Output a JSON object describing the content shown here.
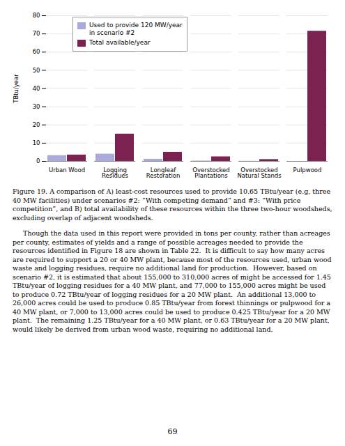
{
  "chart_data": {
    "type": "bar",
    "categories": [
      "Urban Wood",
      "Logging\nResidues",
      "Longleaf\nRestoration",
      "Overstocked\nPlantations",
      "Overstocked\nNatural Stands",
      "Pulpwood"
    ],
    "series": [
      {
        "name": "Used to provide 120 MW/year\nin scenario #2",
        "color": "#AAAADD",
        "values": [
          3.2,
          4.0,
          1.2,
          0.2,
          0.05,
          0.0
        ]
      },
      {
        "name": "Total available/year",
        "color": "#7B2251",
        "values": [
          3.5,
          15.0,
          5.0,
          2.5,
          1.0,
          71.5
        ]
      }
    ],
    "ylabel": "TBtu/year",
    "ylim": [
      0,
      80
    ],
    "yticks": [
      0,
      10,
      20,
      30,
      40,
      50,
      60,
      70,
      80
    ],
    "grid": true,
    "legend": "upper left",
    "caption": "Figure 19.  A comparison of A) least-cost resources used to provide 10.65 TBtu/year (e.g, three 40 MW facilities) under scenarios #2: “With competing demand” and #3: “With price competition”, and B) total availability of these resources within the three two-hour woodsheds, excluding overlap of adjacent woodsheds.",
    "annotations": [
      "     Though the data used in this report were provided in tons per county, rather than acreages per county, estimates of yields and a range of possible acreages needed to provide the resources identified in Figure 18 are shown in Table 22.  It is difficult to say how many acres are required to support a 20 or 40 MW plant, because most of the resources used, urban wood waste and logging residues, require no additional land for production.  However, based on scenario #2, it is estimated that about 155,000 to 310,000 acres of might be accessed for 1.45 TBtu/year of logging residues for a 40 MW plant, and 77,000 to 155,000 acres might be used to produce 0.72 TBtu/year of logging residues for a 20 MW plant.  An additional 13,000 to 26,000 acres could be used to produce 0.85 TBtu/year from forest thinnings or pulpwood for a 40 MW plant, or 7,000 to 13,000 acres could be used to produce 0.425 TBtu/year for a 20 MW plant.  The remaining 1.25 TBtu/year for a 40 MW plant, or 0.63 TBtu/year for a 20 MW plant, would likely be derived from urban wood waste, requiring no additional land.",
      "69"
    ]
  }
}
